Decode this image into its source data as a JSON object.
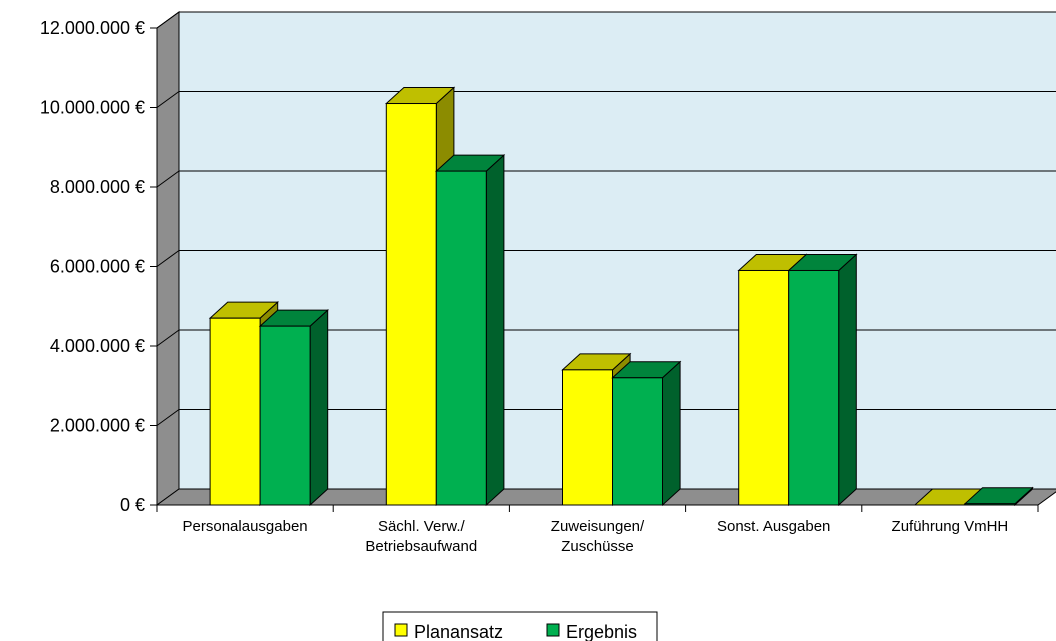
{
  "chart_data": {
    "type": "bar",
    "title": "",
    "xlabel": "",
    "ylabel": "",
    "categories": [
      [
        "Personalausgaben"
      ],
      [
        "Sächl. Verw./",
        "Betriebsaufwand"
      ],
      [
        "Zuweisungen/",
        "Zuschüsse"
      ],
      [
        "Sonst. Ausgaben"
      ],
      [
        "Zuführung VmHH"
      ]
    ],
    "series": [
      {
        "name": "Planansatz",
        "color": "#ffff00",
        "values": [
          4700000,
          10100000,
          3400000,
          5900000,
          0
        ]
      },
      {
        "name": "Ergebnis",
        "color": "#00b050",
        "values": [
          4500000,
          8400000,
          3200000,
          5900000,
          30000
        ]
      }
    ],
    "ylim": [
      0,
      12000000
    ],
    "yticks": [
      0,
      2000000,
      4000000,
      6000000,
      8000000,
      10000000,
      12000000
    ],
    "ytick_labels": [
      "0 €",
      "2.000.000 €",
      "4.000.000 €",
      "6.000.000 €",
      "8.000.000 €",
      "10.000.000 €",
      "12.000.000 €"
    ],
    "grid": true,
    "legend_position": "bottom"
  }
}
